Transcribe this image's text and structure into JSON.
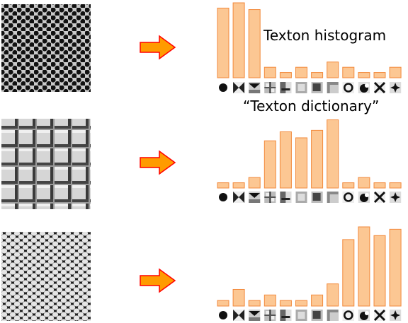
{
  "labels": {
    "histogram_title": "Texton histogram",
    "dictionary_label": "“Texton dictionary”"
  },
  "rows": [
    {
      "texture": "dot-grid",
      "histogram": [
        0.93,
        1.0,
        0.91,
        0.14,
        0.07,
        0.14,
        0.07,
        0.21,
        0.14,
        0.07,
        0.07,
        0.14
      ]
    },
    {
      "texture": "brick-squares",
      "histogram": [
        0.07,
        0.07,
        0.14,
        0.63,
        0.75,
        0.67,
        0.77,
        0.91,
        0.07,
        0.14,
        0.07,
        0.07
      ]
    },
    {
      "texture": "reptile-scales",
      "histogram": [
        0.07,
        0.21,
        0.07,
        0.14,
        0.07,
        0.07,
        0.14,
        0.28,
        0.84,
        1.0,
        0.89,
        0.97
      ]
    }
  ],
  "dictionary_icons": [
    "dark-blob-icon",
    "x-cross-icon",
    "bowtie-icon",
    "plus-grid-icon",
    "split-square-icon",
    "gradient-square-icon",
    "dark-square-icon",
    "soft-square-icon",
    "ring-icon",
    "corner-blob-icon",
    "x-lines-icon",
    "star-blob-icon"
  ],
  "colors": {
    "bar_fill": "#fcc793",
    "bar_stroke": "#f28a3c",
    "arrow_fill": "#ff9b00",
    "arrow_stroke": "#ff0000"
  }
}
